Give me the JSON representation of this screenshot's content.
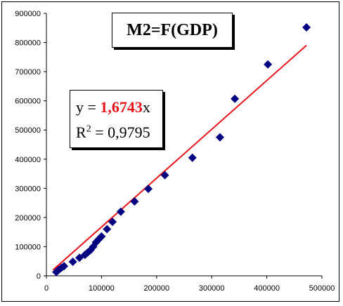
{
  "chart_data": {
    "type": "scatter",
    "title": "M2=F(GDP)",
    "xlim": [
      0,
      500000
    ],
    "ylim": [
      0,
      900000
    ],
    "x_ticks": [
      "0",
      "100000",
      "200000",
      "300000",
      "400000",
      "500000"
    ],
    "y_ticks": [
      "0",
      "100000",
      "200000",
      "300000",
      "400000",
      "500000",
      "600000",
      "700000",
      "800000",
      "900000"
    ],
    "grid": false,
    "marker_color": "#000080",
    "trendline_color": "#e8141c",
    "trendline": {
      "slope": 1.6743,
      "x_range": [
        0,
        472000
      ]
    },
    "equation": {
      "prefix": "y = ",
      "coef": "1,6743",
      "suffix": "x",
      "r2_label": "R",
      "r2_sup": "2",
      "r2_value": " = 0,9795"
    },
    "points": [
      [
        18000,
        13000
      ],
      [
        22000,
        20000
      ],
      [
        27000,
        27000
      ],
      [
        32000,
        33000
      ],
      [
        48000,
        48000
      ],
      [
        60000,
        62000
      ],
      [
        70000,
        72000
      ],
      [
        75000,
        80000
      ],
      [
        80000,
        88000
      ],
      [
        85000,
        100000
      ],
      [
        90000,
        115000
      ],
      [
        95000,
        125000
      ],
      [
        100000,
        135000
      ],
      [
        110000,
        160000
      ],
      [
        120000,
        185000
      ],
      [
        135000,
        220000
      ],
      [
        160000,
        255000
      ],
      [
        185000,
        298000
      ],
      [
        215000,
        345000
      ],
      [
        265000,
        405000
      ],
      [
        315000,
        475000
      ],
      [
        342000,
        607000
      ],
      [
        402000,
        725000
      ],
      [
        472000,
        852000
      ]
    ]
  }
}
